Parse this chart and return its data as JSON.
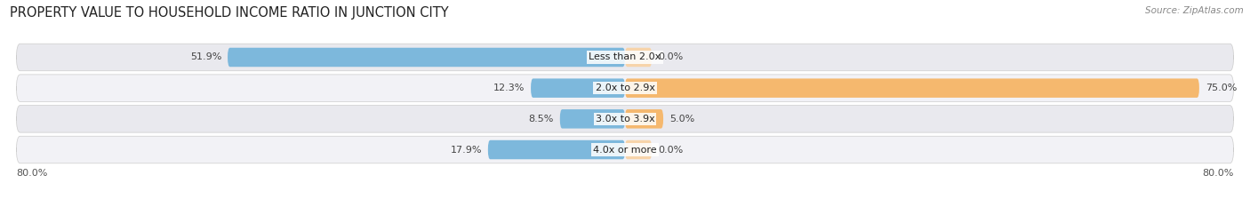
{
  "title": "PROPERTY VALUE TO HOUSEHOLD INCOME RATIO IN JUNCTION CITY",
  "source": "Source: ZipAtlas.com",
  "categories": [
    "Less than 2.0x",
    "2.0x to 2.9x",
    "3.0x to 3.9x",
    "4.0x or more"
  ],
  "without_mortgage": [
    51.9,
    12.3,
    8.5,
    17.9
  ],
  "with_mortgage": [
    0.0,
    75.0,
    5.0,
    0.0
  ],
  "axis_label_left": "80.0%",
  "axis_label_right": "80.0%",
  "color_without": "#7db8dc",
  "color_with": "#f5b86e",
  "color_with_light": "#f7d4aa",
  "bg_row_alt1": "#e9e9ee",
  "bg_row_alt2": "#f2f2f6",
  "bar_max": 80.0,
  "title_fontsize": 10.5,
  "source_fontsize": 7.5,
  "label_fontsize": 8.0,
  "cat_fontsize": 8.0
}
